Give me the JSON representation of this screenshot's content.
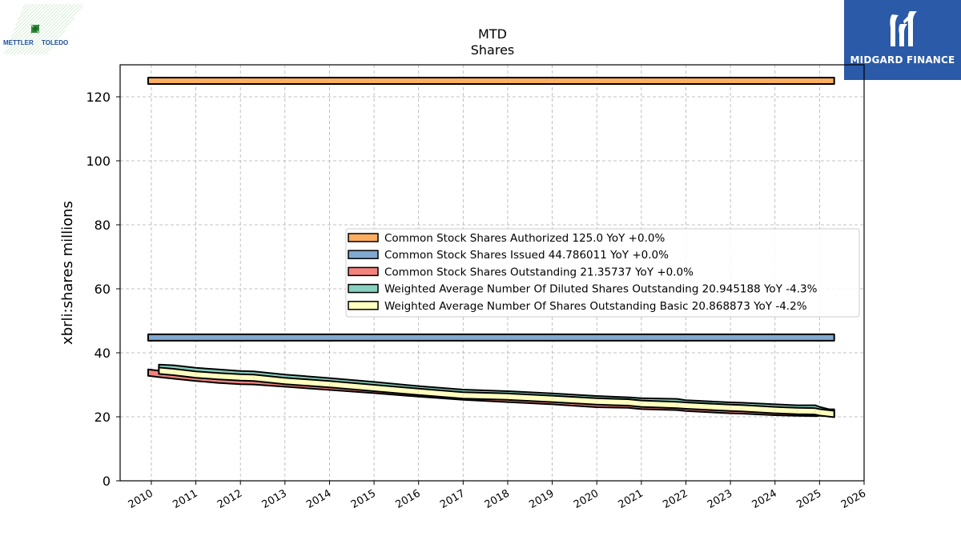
{
  "logos": {
    "left": "METTLER TOLEDO",
    "left_words": [
      "METTLER",
      "TOLEDO"
    ],
    "right": "MIDGARD FINANCE",
    "right_color": "#2a5aa8"
  },
  "chart_data": {
    "type": "area",
    "title": "MTD",
    "subtitle": "Shares",
    "xlabel": "",
    "ylabel": "xbrli:shares millions",
    "xlim": [
      2009.3,
      2026.0
    ],
    "ylim": [
      0,
      130
    ],
    "x_ticks": [
      "2010",
      "2011",
      "2012",
      "2013",
      "2014",
      "2015",
      "2016",
      "2017",
      "2018",
      "2019",
      "2020",
      "2021",
      "2022",
      "2023",
      "2024",
      "2025",
      "2026"
    ],
    "y_ticks": [
      "0",
      "20",
      "40",
      "60",
      "80",
      "100",
      "120"
    ],
    "grid": true,
    "legend_position": "center-right",
    "series": [
      {
        "name": "Common Stock Shares Authorized",
        "legend_label": "Common Stock Shares Authorized  125.0 YoY +0.0%",
        "color": "#fdae61",
        "x": [
          2009.93,
          2025.33
        ],
        "y": [
          125.0,
          125.0
        ]
      },
      {
        "name": "Common Stock Shares Issued",
        "legend_label": "Common Stock Shares Issued  44.786011 YoY +0.0%",
        "color": "#80a9d0",
        "x": [
          2009.93,
          2025.33
        ],
        "y": [
          44.786011,
          44.786011
        ]
      },
      {
        "name": "Common Stock Shares Outstanding",
        "legend_label": "Common Stock Shares Outstanding  21.35737 YoY +0.0%",
        "color": "#f4837d",
        "x": [
          2009.93,
          2010.17,
          2010.5,
          2011.0,
          2011.5,
          2012.0,
          2012.3,
          2013.0,
          2014.0,
          2015.0,
          2016.0,
          2017.0,
          2018.0,
          2019.0,
          2020.0,
          2020.7,
          2021.0,
          2021.8,
          2022.0,
          2023.0,
          2023.25,
          2024.0,
          2024.5,
          2024.9,
          2025.0,
          2025.33
        ],
        "y": [
          33.8,
          33.4,
          32.9,
          32.2,
          31.6,
          31.2,
          31.1,
          30.4,
          29.4,
          28.4,
          27.3,
          26.3,
          25.6,
          24.9,
          24.0,
          23.8,
          23.4,
          23.1,
          22.8,
          22.1,
          22.0,
          21.5,
          21.3,
          21.2,
          21.3,
          21.36
        ]
      },
      {
        "name": "Weighted Average Number Of Diluted Shares Outstanding",
        "legend_label": "Weighted Average Number Of Diluted Shares Outstanding  20.945188 YoY -4.3%",
        "color": "#88d1c0",
        "x": [
          2010.17,
          2010.5,
          2011.0,
          2011.5,
          2012.0,
          2012.3,
          2013.0,
          2014.0,
          2015.0,
          2016.0,
          2017.0,
          2018.0,
          2019.0,
          2020.0,
          2020.7,
          2021.0,
          2021.8,
          2022.0,
          2023.0,
          2023.25,
          2024.0,
          2024.5,
          2024.9,
          2025.0,
          2025.33
        ],
        "y": [
          35.3,
          35.1,
          34.3,
          33.8,
          33.3,
          33.2,
          32.2,
          31.1,
          29.9,
          28.6,
          27.5,
          27.0,
          26.3,
          25.5,
          25.1,
          24.8,
          24.6,
          24.2,
          23.5,
          23.4,
          22.9,
          22.6,
          22.6,
          22.1,
          20.945188
        ]
      },
      {
        "name": "Weighted Average Number Of Shares Outstanding Basic",
        "legend_label": "Weighted Average Number Of Shares Outstanding Basic  20.868873 YoY -4.2%",
        "color": "#ffffbf",
        "x": [
          2010.17,
          2010.5,
          2011.0,
          2011.5,
          2012.0,
          2012.3,
          2013.0,
          2014.0,
          2015.0,
          2016.0,
          2017.0,
          2018.0,
          2019.0,
          2020.0,
          2020.7,
          2021.0,
          2021.8,
          2022.0,
          2023.0,
          2023.25,
          2024.0,
          2024.5,
          2024.9,
          2025.0,
          2025.33
        ],
        "y": [
          34.4,
          34.0,
          33.2,
          32.7,
          32.3,
          32.2,
          31.2,
          30.2,
          29.0,
          27.8,
          26.7,
          26.3,
          25.6,
          24.8,
          24.5,
          24.1,
          23.7,
          23.5,
          22.8,
          22.7,
          22.1,
          21.8,
          21.7,
          21.4,
          20.868873
        ]
      }
    ]
  }
}
